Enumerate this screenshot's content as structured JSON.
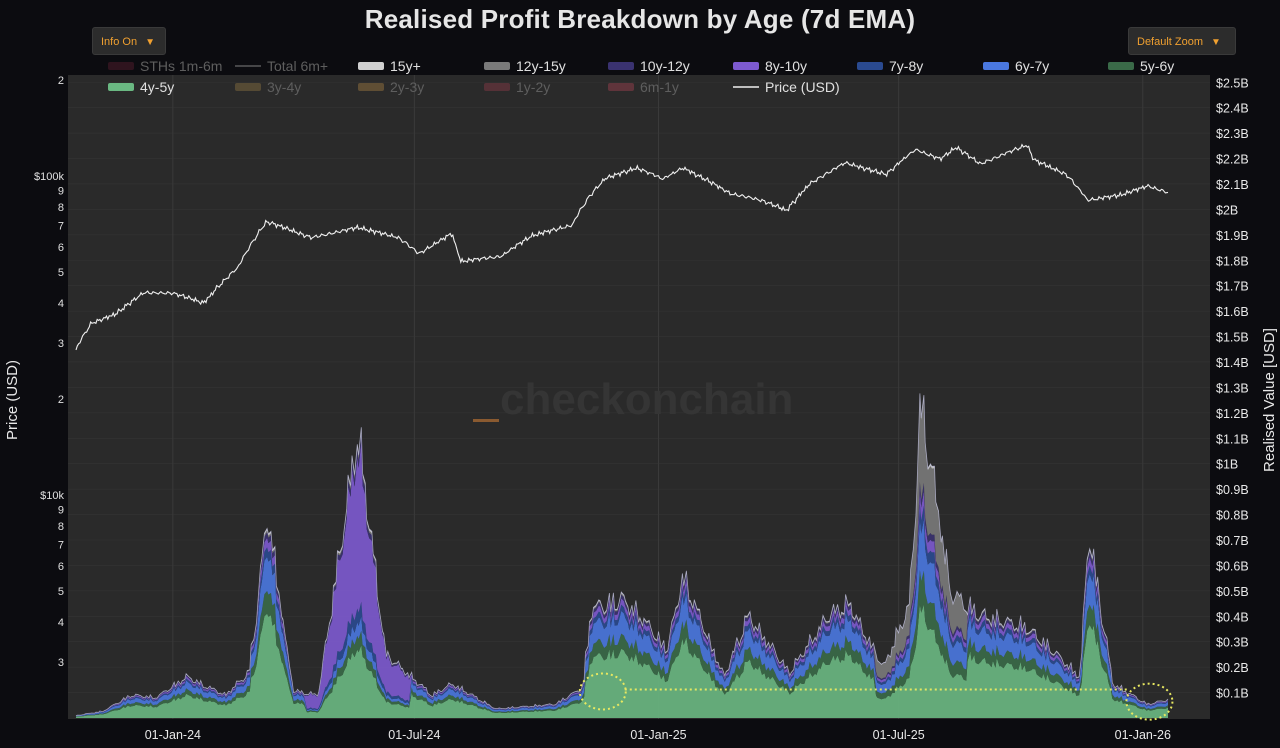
{
  "title": "Realised Profit Breakdown by Age (7d EMA)",
  "controls": {
    "info_label": "Info On",
    "zoom_label": "Default Zoom"
  },
  "watermark": "checkonchain",
  "colors": {
    "background": "#0c0c10",
    "plot_bg": "#2a2a2a",
    "grid": "#3a3a3a",
    "price": "#f0f0f0",
    "highlight": "#e8e860"
  },
  "legend": [
    {
      "label": "STHs 1m-6m",
      "color": "#5a2030",
      "visible": false
    },
    {
      "label": "Total 6m+",
      "color": "#777777",
      "visible": false,
      "style": "line"
    },
    {
      "label": "15y+",
      "color": "#d0d0d0",
      "visible": true
    },
    {
      "label": "12y-15y",
      "color": "#7a7a7a",
      "visible": true
    },
    {
      "label": "10y-12y",
      "color": "#3a3270",
      "visible": true
    },
    {
      "label": "8y-10y",
      "color": "#7d5ad0",
      "visible": true
    },
    {
      "label": "7y-8y",
      "color": "#2a4a90",
      "visible": true
    },
    {
      "label": "6y-7y",
      "color": "#4a78e0",
      "visible": true
    },
    {
      "label": "5y-6y",
      "color": "#3a6a48",
      "visible": true
    },
    {
      "label": "4y-5y",
      "color": "#6ab882",
      "visible": true
    },
    {
      "label": "3y-4y",
      "color": "#8a7040",
      "visible": false
    },
    {
      "label": "2y-3y",
      "color": "#a07a40",
      "visible": false
    },
    {
      "label": "1y-2y",
      "color": "#8a3a48",
      "visible": false
    },
    {
      "label": "6m-1y",
      "color": "#a04050",
      "visible": false
    },
    {
      "label": "Price (USD)",
      "color": "#f0f0f0",
      "visible": true,
      "style": "line"
    }
  ],
  "axes": {
    "left_title": "Price (USD)",
    "right_title": "Realised Value [USD]",
    "left_ticks": [
      "2",
      "$100k",
      "9",
      "8",
      "7",
      "6",
      "5",
      "4",
      "3",
      "2",
      "$10k",
      "9",
      "8",
      "7",
      "6",
      "5",
      "4",
      "3"
    ],
    "right_ticks": [
      "$2.5B",
      "$2.4B",
      "$2.3B",
      "$2.2B",
      "$2.1B",
      "$2B",
      "$1.9B",
      "$1.8B",
      "$1.7B",
      "$1.6B",
      "$1.5B",
      "$1.4B",
      "$1.3B",
      "$1.2B",
      "$1.1B",
      "$1B",
      "$0.9B",
      "$0.8B",
      "$0.7B",
      "$0.6B",
      "$0.5B",
      "$0.4B",
      "$0.3B",
      "$0.2B",
      "$0.1B"
    ],
    "x_ticks": [
      "01-Jan-24",
      "01-Jul-24",
      "01-Jan-25",
      "01-Jul-25",
      "01-Jan-26"
    ]
  },
  "chart_data": {
    "type": "area",
    "title": "Realised Profit Breakdown by Age (7d EMA)",
    "x_range": [
      "2023-10-20",
      "2026-01-20"
    ],
    "y_left": {
      "label": "Price (USD)",
      "scale": "log",
      "range": [
        2000,
        200000
      ]
    },
    "y_right": {
      "label": "Realised Value [USD]",
      "scale": "linear",
      "range": [
        0,
        2.5
      ],
      "unit": "B USD"
    },
    "price_series": {
      "name": "Price (USD)",
      "points": [
        [
          "2023-10-20",
          28500
        ],
        [
          "2023-11-01",
          34500
        ],
        [
          "2023-11-20",
          37000
        ],
        [
          "2023-12-10",
          43000
        ],
        [
          "2024-01-01",
          43000
        ],
        [
          "2024-01-25",
          40000
        ],
        [
          "2024-02-20",
          52000
        ],
        [
          "2024-03-12",
          72000
        ],
        [
          "2024-04-15",
          64000
        ],
        [
          "2024-05-20",
          69000
        ],
        [
          "2024-06-20",
          64000
        ],
        [
          "2024-07-05",
          57000
        ],
        [
          "2024-07-30",
          66000
        ],
        [
          "2024-08-05",
          54000
        ],
        [
          "2024-09-05",
          56000
        ],
        [
          "2024-09-28",
          65000
        ],
        [
          "2024-10-28",
          70000
        ],
        [
          "2024-11-12",
          88000
        ],
        [
          "2024-11-22",
          98000
        ],
        [
          "2024-12-16",
          106000
        ],
        [
          "2025-01-05",
          98000
        ],
        [
          "2025-01-20",
          106000
        ],
        [
          "2025-02-25",
          88000
        ],
        [
          "2025-03-20",
          84000
        ],
        [
          "2025-04-08",
          78000
        ],
        [
          "2025-04-25",
          94000
        ],
        [
          "2025-05-22",
          110000
        ],
        [
          "2025-06-22",
          101000
        ],
        [
          "2025-07-14",
          121000
        ],
        [
          "2025-08-02",
          113000
        ],
        [
          "2025-08-14",
          123000
        ],
        [
          "2025-09-01",
          109000
        ],
        [
          "2025-10-06",
          125000
        ],
        [
          "2025-10-12",
          112000
        ],
        [
          "2025-11-05",
          101000
        ],
        [
          "2025-11-21",
          84000
        ],
        [
          "2025-12-15",
          87000
        ],
        [
          "2026-01-05",
          93000
        ],
        [
          "2026-01-20",
          89000
        ]
      ]
    },
    "stack_order": [
      "4y-5y",
      "5y-6y",
      "6y-7y",
      "7y-8y",
      "8y-10y",
      "10y-12y",
      "12y-15y",
      "15y+"
    ],
    "total_series": {
      "name": "Realised profit (total stacked)",
      "points": [
        [
          "2023-10-20",
          0.01
        ],
        [
          "2023-11-10",
          0.03
        ],
        [
          "2023-12-01",
          0.1
        ],
        [
          "2023-12-20",
          0.09
        ],
        [
          "2024-01-12",
          0.18
        ],
        [
          "2024-02-10",
          0.1
        ],
        [
          "2024-02-28",
          0.2
        ],
        [
          "2024-03-13",
          0.9
        ],
        [
          "2024-04-01",
          0.12
        ],
        [
          "2024-04-20",
          0.1
        ],
        [
          "2024-05-20",
          1.26
        ],
        [
          "2024-06-10",
          0.28
        ],
        [
          "2024-07-15",
          0.1
        ],
        [
          "2024-07-30",
          0.15
        ],
        [
          "2024-09-01",
          0.04
        ],
        [
          "2024-10-15",
          0.06
        ],
        [
          "2024-11-05",
          0.13
        ],
        [
          "2024-11-12",
          0.48
        ],
        [
          "2024-12-05",
          0.52
        ],
        [
          "2024-12-20",
          0.44
        ],
        [
          "2025-01-08",
          0.3
        ],
        [
          "2025-01-20",
          0.62
        ],
        [
          "2025-02-20",
          0.18
        ],
        [
          "2025-03-10",
          0.45
        ],
        [
          "2025-04-10",
          0.2
        ],
        [
          "2025-05-10",
          0.45
        ],
        [
          "2025-05-25",
          0.5
        ],
        [
          "2025-06-20",
          0.22
        ],
        [
          "2025-07-10",
          0.5
        ],
        [
          "2025-07-18",
          1.4
        ],
        [
          "2025-08-10",
          0.55
        ],
        [
          "2025-09-01",
          0.45
        ],
        [
          "2025-10-05",
          0.4
        ],
        [
          "2025-10-25",
          0.3
        ],
        [
          "2025-11-15",
          0.18
        ],
        [
          "2025-11-22",
          0.82
        ],
        [
          "2025-12-10",
          0.15
        ],
        [
          "2026-01-05",
          0.06
        ],
        [
          "2026-01-20",
          0.08
        ]
      ]
    },
    "annotations": [
      {
        "type": "ellipse",
        "at": "2024-11-20",
        "value": 0.12,
        "note": "dotted highlight"
      },
      {
        "type": "ellipse",
        "at": "2026-01-06",
        "value": 0.08,
        "note": "dotted highlight"
      },
      {
        "type": "hline",
        "from": "2024-11-20",
        "to": "2026-01-06",
        "value": 0.12,
        "style": "dotted"
      }
    ],
    "grid": true,
    "legend_position": "top"
  }
}
